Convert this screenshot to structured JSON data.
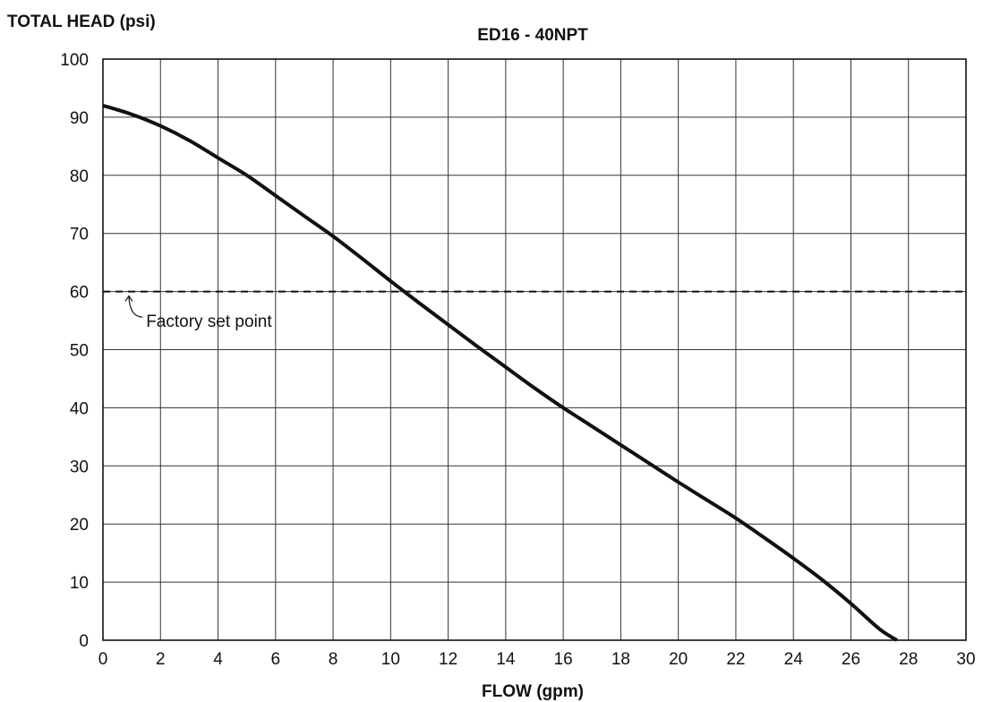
{
  "chart_data": {
    "type": "line",
    "title": "ED16 - 40NPT",
    "xlabel": "FLOW (gpm)",
    "ylabel": "TOTAL HEAD (psi)",
    "xlim": [
      0,
      30
    ],
    "ylim": [
      0,
      100
    ],
    "x_ticks": [
      0,
      2,
      4,
      6,
      8,
      10,
      12,
      14,
      16,
      18,
      20,
      22,
      24,
      26,
      28,
      30
    ],
    "y_ticks": [
      0,
      10,
      20,
      30,
      40,
      50,
      60,
      70,
      80,
      90,
      100
    ],
    "grid": true,
    "series": [
      {
        "x": [
          0,
          1,
          2,
          3,
          4,
          5,
          6,
          7,
          8,
          9,
          10,
          11,
          12,
          13,
          14,
          15,
          16,
          17,
          18,
          19,
          20,
          21,
          22,
          23,
          24,
          25,
          26,
          27,
          27.6
        ],
        "y": [
          92,
          90.5,
          88.5,
          86,
          83,
          80,
          76.5,
          73,
          69.5,
          65.7,
          61.8,
          58,
          54.3,
          50.6,
          47,
          43.4,
          40,
          36.8,
          33.6,
          30.4,
          27.2,
          24.1,
          21,
          17.6,
          14.1,
          10.4,
          6.3,
          1.9,
          0
        ],
        "color": "#111111"
      }
    ],
    "reference_lines": [
      {
        "y": 60,
        "style": "dashed",
        "label": "Factory set point"
      }
    ],
    "annotations": [
      {
        "text": "Factory set point",
        "x": 1.5,
        "y": 55
      }
    ]
  }
}
